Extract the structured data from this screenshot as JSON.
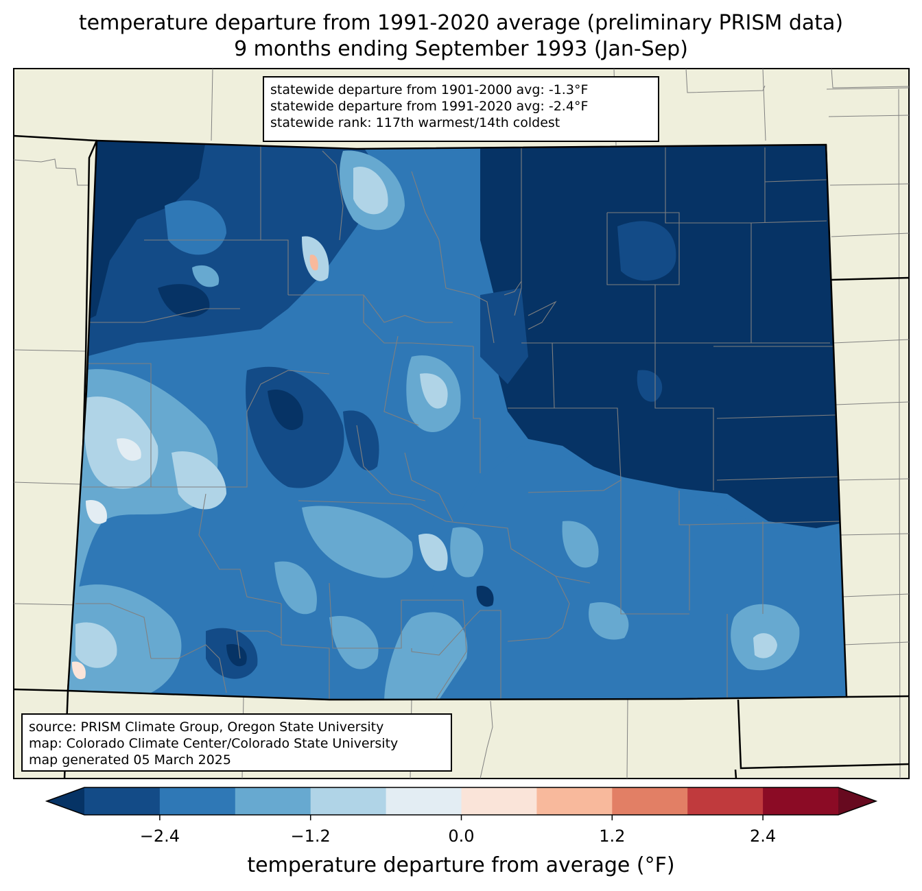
{
  "title": {
    "line1": "temperature departure from 1991-2020 average (preliminary PRISM data)",
    "line2": "9 months ending September 1993 (Jan-Sep)"
  },
  "stats_box": {
    "line1": "statewide departure from 1901-2000 avg: -1.3°F",
    "line2": "statewide departure from 1991-2020 avg: -2.4°F",
    "line3": "statewide rank: 117th warmest/14th coldest"
  },
  "source_box": {
    "line1": "source: PRISM Climate Group, Oregon State University",
    "line2": "map: Colorado Climate Center/Colorado State University",
    "line3": "map generated 05 March 2025"
  },
  "colorbar": {
    "label": "temperature departure from average (°F)",
    "ticks": [
      "−2.4",
      "−1.2",
      "0.0",
      "1.2",
      "2.4"
    ],
    "tick_values": [
      -2.4,
      -1.2,
      0.0,
      1.2,
      2.4
    ],
    "range": [
      -3.0,
      3.0
    ],
    "bounds": [
      -3.0,
      -2.4,
      -1.8,
      -1.2,
      -0.6,
      0.0,
      0.6,
      1.2,
      1.8,
      2.4,
      3.0
    ],
    "colors": [
      "#134b87",
      "#2f78b6",
      "#67a9d0",
      "#b0d4e7",
      "#e3edf3",
      "#fae4d9",
      "#f8b99c",
      "#e27f65",
      "#c03a3d",
      "#8b0b25"
    ],
    "under_color": "#063365",
    "over_color": "#670a1f"
  },
  "map_colors": {
    "background_land": "#efefdc",
    "state_border": "#000000",
    "county_border": "#808080"
  }
}
